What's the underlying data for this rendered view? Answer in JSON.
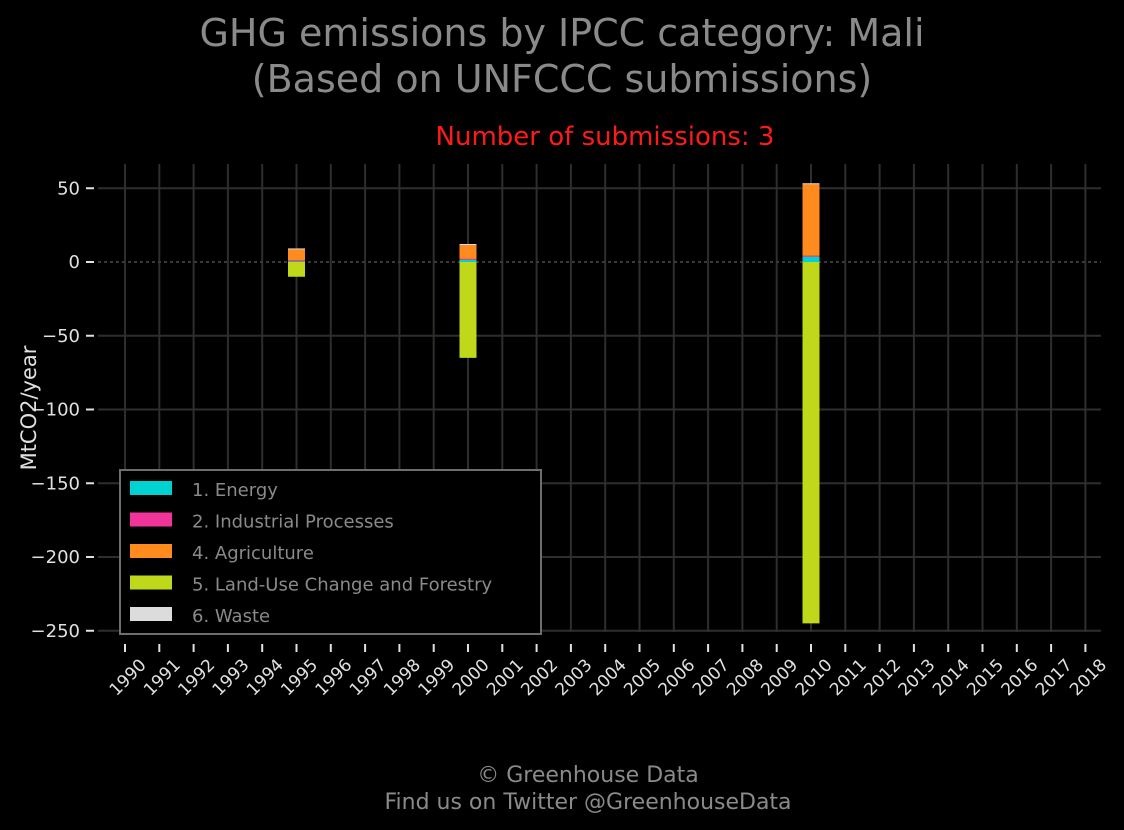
{
  "header": {
    "title_line1": "GHG emissions by IPCC category: Mali",
    "title_line2": "(Based on UNFCCC submissions)",
    "subtitle": "Number of submissions: 3"
  },
  "footer": {
    "line1": "© Greenhouse Data",
    "line2": "Find us on Twitter @GreenhouseData"
  },
  "colors": {
    "background": "#000000",
    "grid": "#2e2e2e",
    "tick_text": "#e0e0e0",
    "title_text": "#8a8a8a",
    "subtitle_text": "#ff1a1a"
  },
  "chart_data": {
    "type": "bar",
    "stacked": true,
    "ylabel": "MtCO2/year",
    "xlabel": "",
    "ylim": [
      -255,
      67
    ],
    "yticks": [
      50,
      0,
      -50,
      -100,
      -150,
      -200,
      -250
    ],
    "ytick_labels": [
      "50",
      "0",
      "−50",
      "−100",
      "−150",
      "−200",
      "−250"
    ],
    "categories": [
      "1990",
      "1991",
      "1992",
      "1993",
      "1994",
      "1995",
      "1996",
      "1997",
      "1998",
      "1999",
      "2000",
      "2001",
      "2002",
      "2003",
      "2004",
      "2005",
      "2006",
      "2007",
      "2008",
      "2009",
      "2010",
      "2011",
      "2012",
      "2013",
      "2014",
      "2015",
      "2016",
      "2017",
      "2018"
    ],
    "grid": true,
    "legend_position": "lower-left",
    "series": [
      {
        "name": "1. Energy",
        "color": "#00d2d2",
        "values": {
          "1995": 1,
          "2000": 2,
          "2010": 4
        }
      },
      {
        "name": "2. Industrial Processes",
        "color": "#f0349a",
        "values": {
          "1995": 0.1,
          "2000": 0.1,
          "2010": 0.2
        }
      },
      {
        "name": "4. Agriculture",
        "color": "#ff8a1e",
        "values": {
          "1995": 8,
          "2000": 10,
          "2010": 49
        }
      },
      {
        "name": "5. Land-Use Change and Forestry",
        "color": "#bfd81a",
        "values": {
          "1995": -10,
          "2000": -65,
          "2010": -245
        }
      },
      {
        "name": "6. Waste",
        "color": "#dcdcdc",
        "values": {
          "1995": 0.1,
          "2000": 0.1,
          "2010": 0.2
        }
      }
    ]
  }
}
